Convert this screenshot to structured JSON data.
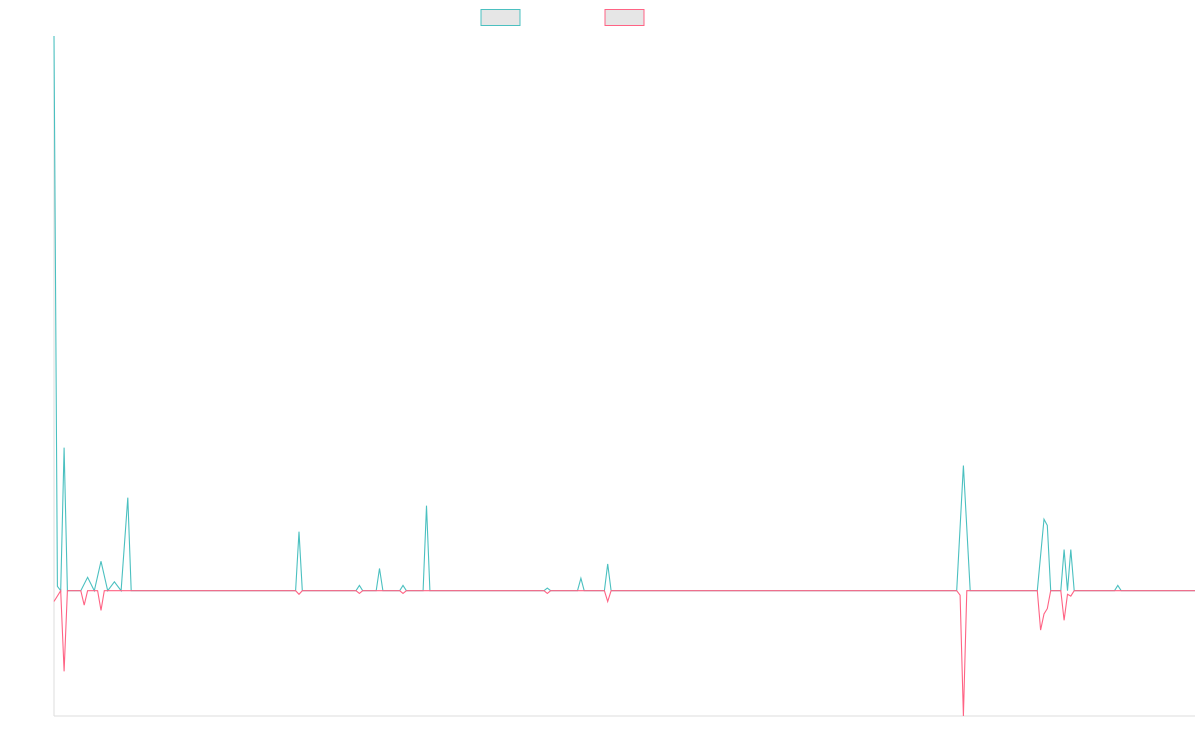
{
  "chart_data": {
    "type": "line",
    "grid": false,
    "legend": "top-center",
    "ylim": [
      -14,
      62
    ],
    "xlim": [
      0,
      340
    ],
    "series": [
      {
        "color": "#4bc0c0",
        "fill": "#e6e6e6",
        "points": [
          [
            0,
            62
          ],
          [
            1,
            0.5
          ],
          [
            2,
            0
          ],
          [
            3,
            16
          ],
          [
            4,
            0
          ],
          [
            8,
            0
          ],
          [
            10,
            1.5
          ],
          [
            12,
            0
          ],
          [
            14,
            3.3
          ],
          [
            16,
            0
          ],
          [
            18,
            1
          ],
          [
            20,
            0
          ],
          [
            22,
            10.4
          ],
          [
            23,
            0
          ],
          [
            72,
            0
          ],
          [
            73,
            6.6
          ],
          [
            74,
            0
          ],
          [
            90,
            0
          ],
          [
            91,
            0.6
          ],
          [
            92,
            0
          ],
          [
            96,
            0
          ],
          [
            97,
            2.5
          ],
          [
            98,
            0
          ],
          [
            103,
            0
          ],
          [
            104,
            0.6
          ],
          [
            105,
            0
          ],
          [
            110,
            0
          ],
          [
            111,
            9.5
          ],
          [
            112,
            0
          ],
          [
            146,
            0
          ],
          [
            147,
            0.3
          ],
          [
            148,
            0
          ],
          [
            156,
            0
          ],
          [
            157,
            1.4
          ],
          [
            158,
            0
          ],
          [
            164,
            0
          ],
          [
            165,
            3
          ],
          [
            166,
            0
          ],
          [
            269,
            0
          ],
          [
            271,
            14
          ],
          [
            273,
            0
          ],
          [
            293,
            0
          ],
          [
            295,
            8
          ],
          [
            296,
            7.3
          ],
          [
            297,
            0
          ],
          [
            300,
            0
          ],
          [
            301,
            4.6
          ],
          [
            302,
            0
          ],
          [
            303,
            4.6
          ],
          [
            304,
            0
          ],
          [
            316,
            0
          ],
          [
            317,
            0.6
          ],
          [
            318,
            0
          ],
          [
            340,
            0
          ]
        ]
      },
      {
        "color": "#ff6384",
        "fill": "#e6e6e6",
        "points": [
          [
            0,
            -1.2
          ],
          [
            2,
            0
          ],
          [
            3,
            -9
          ],
          [
            4,
            0
          ],
          [
            8,
            0
          ],
          [
            9,
            -1.6
          ],
          [
            10,
            0
          ],
          [
            13,
            0
          ],
          [
            14,
            -2.2
          ],
          [
            15,
            0
          ],
          [
            22,
            0
          ],
          [
            72,
            0
          ],
          [
            73,
            -0.4
          ],
          [
            74,
            0
          ],
          [
            90,
            0
          ],
          [
            91,
            -0.3
          ],
          [
            92,
            0
          ],
          [
            103,
            0
          ],
          [
            104,
            -0.3
          ],
          [
            105,
            0
          ],
          [
            110,
            0
          ],
          [
            146,
            0
          ],
          [
            147,
            -0.3
          ],
          [
            148,
            0
          ],
          [
            164,
            0
          ],
          [
            165,
            -1.2
          ],
          [
            166,
            0
          ],
          [
            269,
            0
          ],
          [
            270,
            -0.5
          ],
          [
            271,
            -14
          ],
          [
            272,
            0
          ],
          [
            293,
            0
          ],
          [
            294,
            -4.4
          ],
          [
            295,
            -2.6
          ],
          [
            296,
            -2
          ],
          [
            297,
            0
          ],
          [
            300,
            0
          ],
          [
            301,
            -3.3
          ],
          [
            302,
            -0.4
          ],
          [
            303,
            -0.6
          ],
          [
            304,
            0
          ],
          [
            340,
            0
          ]
        ]
      }
    ]
  }
}
